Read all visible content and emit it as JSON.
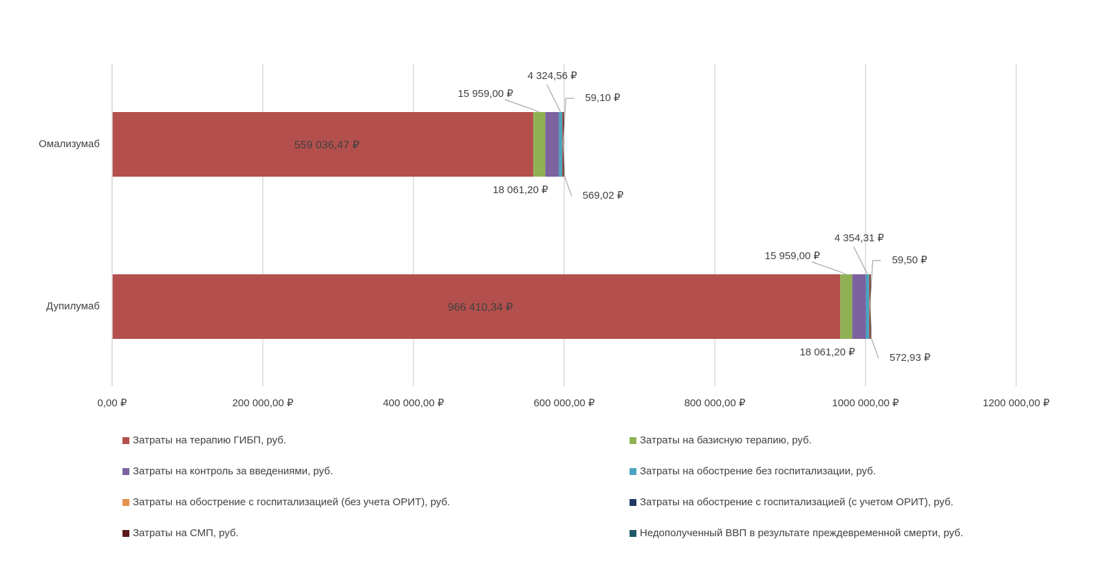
{
  "chart_data": {
    "type": "bar",
    "orientation": "horizontal",
    "stacked": true,
    "categories": [
      "Омализумаб",
      "Дупилумаб"
    ],
    "series": [
      {
        "name": "Затраты на терапию ГИБП, руб.",
        "color": "#b3504d",
        "values": [
          559036.47,
          966410.34
        ],
        "labels": [
          "559 036,47 ₽",
          "966 410,34 ₽"
        ]
      },
      {
        "name": "Затраты на базисную терапию, руб.",
        "color": "#8fb154",
        "values": [
          15959.0,
          15959.0
        ],
        "labels": [
          "15 959,00 ₽",
          "15 959,00 ₽"
        ]
      },
      {
        "name": "Затраты на контроль за введениями, руб.",
        "color": "#7d62a0",
        "values": [
          18061.2,
          18061.2
        ],
        "labels": [
          "18 061,20 ₽",
          "18 061,20 ₽"
        ]
      },
      {
        "name": "Затраты на обострение без госпитализации, руб.",
        "color": "#4aa3c1",
        "values": [
          4324.56,
          4354.31
        ],
        "labels": [
          "4 324,56 ₽",
          "4 354,31 ₽"
        ]
      },
      {
        "name": "Затраты на обострение с госпитализацией (без учета ОРИТ), руб.",
        "color": "#e8914b",
        "values": [
          569.02,
          572.93
        ],
        "labels": [
          "569,02 ₽",
          "572,93 ₽"
        ]
      },
      {
        "name": "Затраты на обострение с госпитализацией (с учетом ОРИТ), руб.",
        "color": "#1f3864",
        "values": [
          59.1,
          59.5
        ],
        "labels": [
          "59,10 ₽",
          "59,50 ₽"
        ]
      },
      {
        "name": "Затраты на СМП, руб.",
        "color": "#5c1a1a",
        "values": [
          1200,
          1200
        ],
        "labels": []
      },
      {
        "name": "Недополученный ВВП в результате преждевременной смерти, руб.",
        "color": "#215868",
        "values": [
          0,
          0
        ],
        "labels": []
      }
    ],
    "xlim": [
      0,
      1200000
    ],
    "xticks": [
      0,
      200000,
      400000,
      600000,
      800000,
      1000000,
      1200000
    ],
    "xtick_labels": [
      "0,00 ₽",
      "200 000,00 ₽",
      "400 000,00 ₽",
      "600 000,00 ₽",
      "800 000,00 ₽",
      "1000 000,00 ₽",
      "1200 000,00 ₽"
    ],
    "grid": true,
    "legend_position": "bottom",
    "title": "",
    "xlabel": "",
    "ylabel": "",
    "colors": {
      "grid": "#d9d9d9",
      "text": "#404040",
      "leader": "#a6a6a6"
    }
  }
}
